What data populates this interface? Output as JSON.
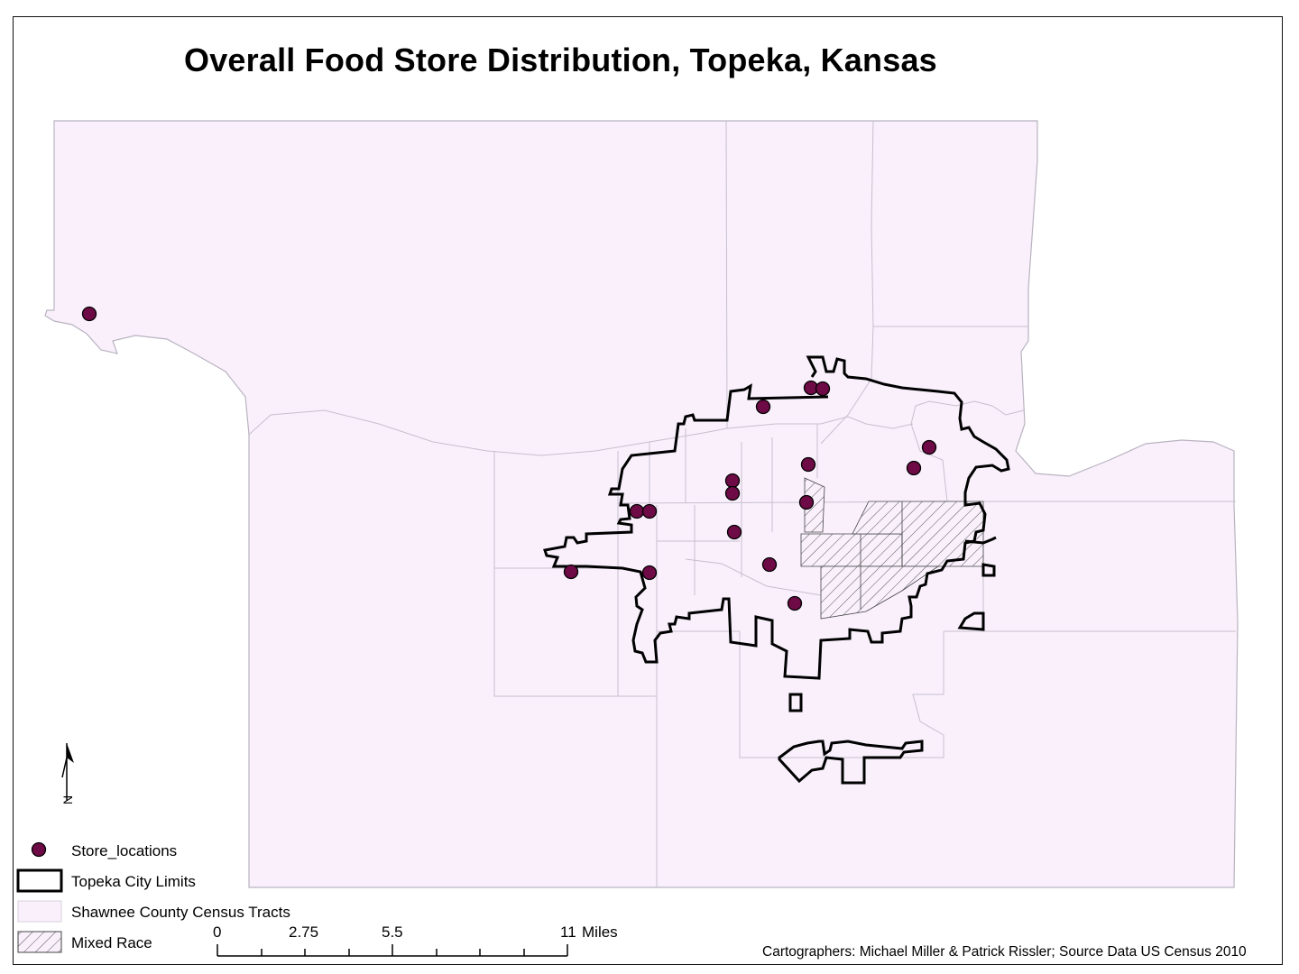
{
  "title": "Overall Food Store Distribution, Topeka, Kansas",
  "legend": {
    "stores": "Store_locations",
    "city_limits": "Topeka City Limits",
    "tracts": "Shawnee County Census Tracts",
    "mixed_race": "Mixed Race"
  },
  "scale_bar": {
    "ticks": [
      "0",
      "2.75",
      "5.5",
      "11"
    ],
    "unit": "Miles"
  },
  "north_arrow_label": "N",
  "credit": "Cartographers: Michael Miller & Patrick Rissler; Source Data US Census 2010",
  "colors": {
    "tract_fill": "#f9f0fc",
    "tract_line": "#c6c0cc",
    "store_fill": "#6e0a45",
    "city_line": "#000000",
    "hatch": "#555555"
  }
}
